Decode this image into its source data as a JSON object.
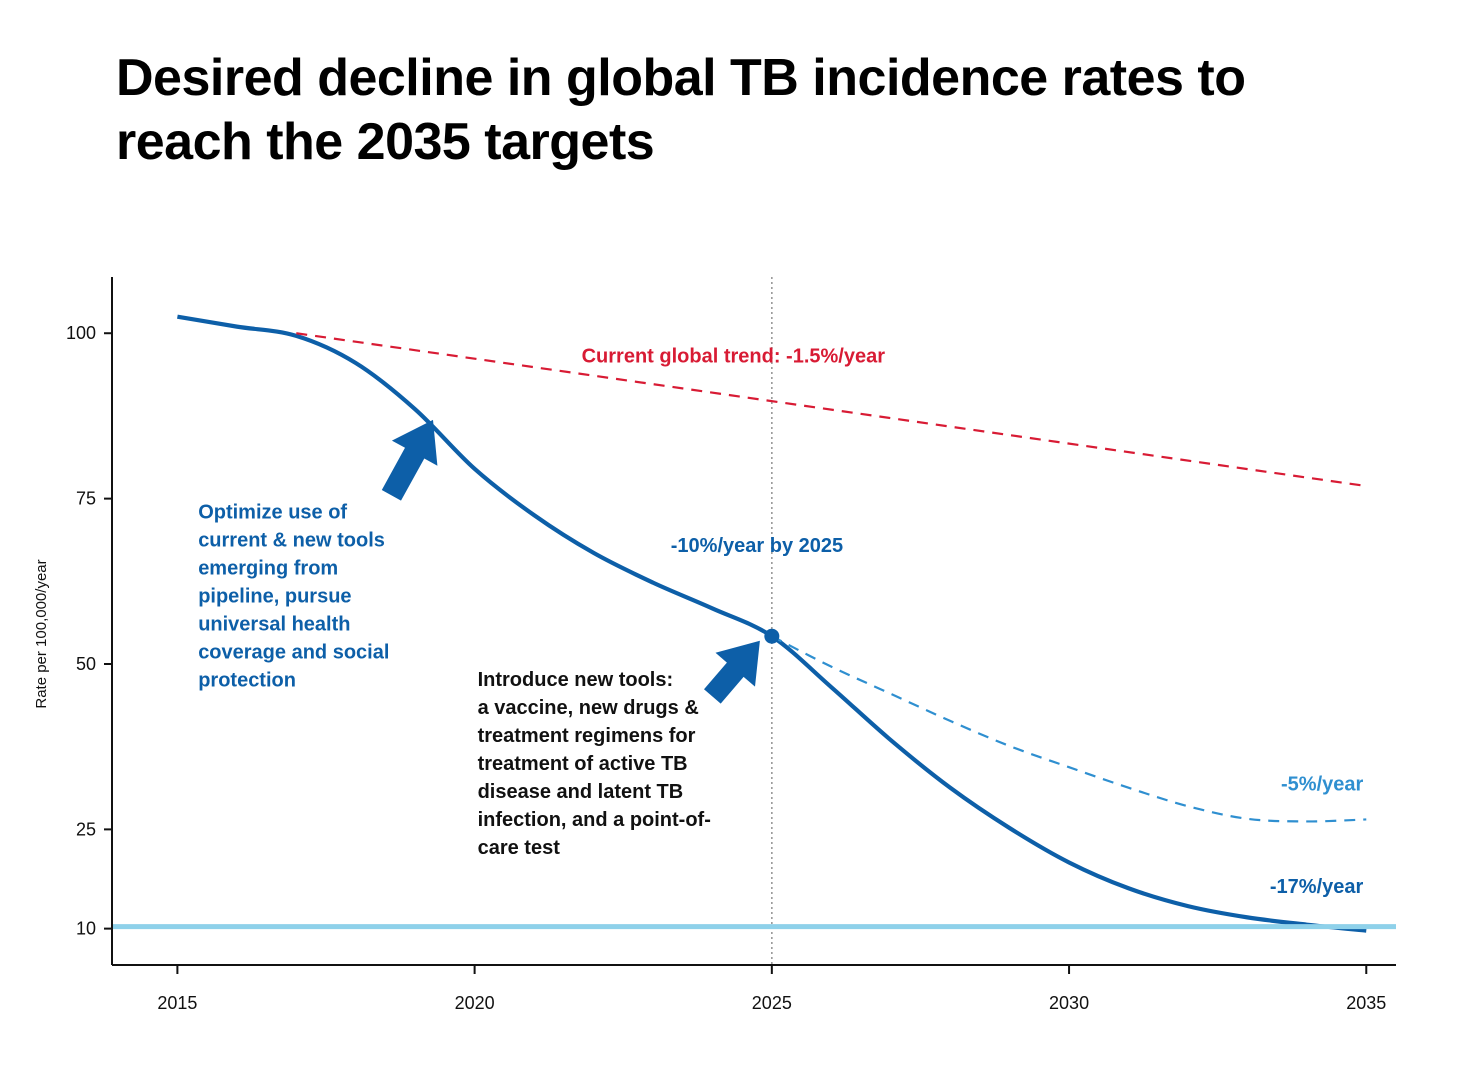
{
  "chart_data": {
    "type": "line",
    "title": "Desired decline in global TB incidence rates to reach the 2035 targets",
    "xlabel": "",
    "ylabel": "Rate per 100,000/year",
    "xlim": [
      2013.9,
      2035.5
    ],
    "ylim": [
      4.5,
      108.5
    ],
    "xticks": [
      2015,
      2020,
      2025,
      2030,
      2035
    ],
    "xtick_labels": [
      "2015",
      "2020",
      "2025",
      "2030",
      "2035"
    ],
    "yticks": [
      10,
      25,
      50,
      75,
      100
    ],
    "ytick_labels": [
      "10",
      "25",
      "50",
      "75",
      "100"
    ],
    "grid": false,
    "colors": {
      "target": "#0d5fa8",
      "current_trend": "#d81b34",
      "alternative": "#2f8fd0",
      "baseline": "#8ed1ea",
      "ref_line": "#999999",
      "arrow": "#0d5fa8",
      "black_text": "#111111"
    },
    "series": [
      {
        "name": "Target decline (-17%/year after 2025)",
        "style": "solid",
        "x": [
          2015,
          2016,
          2017,
          2018,
          2019,
          2020,
          2021,
          2022,
          2023,
          2024,
          2025,
          2026,
          2027,
          2028,
          2029,
          2030,
          2031,
          2032,
          2033,
          2034,
          2035
        ],
        "y": [
          102.5,
          101,
          99.6,
          95.5,
          88.5,
          79.5,
          72.5,
          66.8,
          62.3,
          58.4,
          54.2,
          46.5,
          38.5,
          31.3,
          25.2,
          20,
          16.1,
          13.4,
          11.7,
          10.6,
          9.7
        ]
      },
      {
        "name": "Current global trend",
        "style": "dashed",
        "x": [
          2017,
          2035
        ],
        "y": [
          100,
          76.9
        ]
      },
      {
        "name": "-5%/year scenario",
        "style": "dashed",
        "x": [
          2025,
          2026,
          2027,
          2028,
          2029,
          2030,
          2031,
          2032,
          2033,
          2034,
          2035
        ],
        "y": [
          54.2,
          49.6,
          45.5,
          41.4,
          37.6,
          34.4,
          31.3,
          28.5,
          26.6,
          26.2,
          26.5
        ]
      },
      {
        "name": "Target threshold",
        "style": "solid-thick",
        "x": [
          2013.9,
          2035.5
        ],
        "y": [
          10.3,
          10.3
        ]
      }
    ],
    "markers": [
      {
        "name": "2025 milestone",
        "x": 2025,
        "y": 54.2
      }
    ],
    "reference_lines": [
      {
        "name": "2025 vertical",
        "axis": "x",
        "value": 2025,
        "style": "dotted"
      }
    ],
    "arrows": [
      {
        "name": "first",
        "x1": 2018.6,
        "y1": 75.5,
        "x2": 2019.3,
        "y2": 86.9
      },
      {
        "name": "second",
        "x1": 2024.0,
        "y1": 45.1,
        "x2": 2024.8,
        "y2": 53.5
      }
    ],
    "annotations": [
      {
        "id": "current_trend",
        "lines": [
          "Current global trend:  -1.5%/year"
        ],
        "x": 2021.8,
        "y": 95.6,
        "anchor": "start",
        "color": "#d81b34"
      },
      {
        "id": "ten_percent",
        "lines": [
          "-10%/year by 2025"
        ],
        "x": 2023.3,
        "y": 66.9,
        "anchor": "start",
        "color": "#0d5fa8"
      },
      {
        "id": "optimize",
        "lines": [
          "Optimize use of",
          "current & new tools",
          "emerging from",
          "pipeline, pursue",
          "universal health",
          "coverage and social",
          "protection"
        ],
        "x": 2015.35,
        "y": 72.0,
        "anchor": "start",
        "color": "#0d5fa8"
      },
      {
        "id": "introduce",
        "lines": [
          "Introduce new tools:",
          "a vaccine, new drugs &",
          "treatment regimens for",
          "treatment of active TB",
          "disease and latent TB",
          "infection, and a point-of-",
          "care test"
        ],
        "x": 2020.05,
        "y": 46.7,
        "anchor": "start",
        "color": "#111111"
      },
      {
        "id": "five_percent",
        "lines": [
          "-5%/year"
        ],
        "x": 2034.95,
        "y": 30.9,
        "anchor": "end",
        "color": "#2f8fd0"
      },
      {
        "id": "seventeen_percent",
        "lines": [
          "-17%/year"
        ],
        "x": 2034.95,
        "y": 15.4,
        "anchor": "end",
        "color": "#0d5fa8"
      }
    ]
  }
}
